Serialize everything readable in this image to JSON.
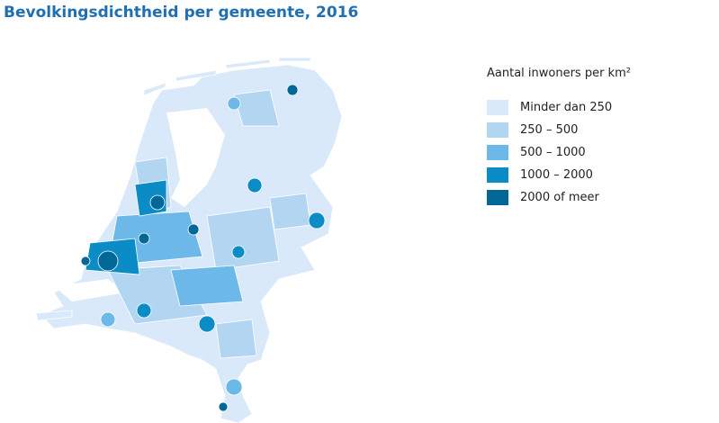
{
  "title": "Bevolkingsdichtheid per gemeente, 2016",
  "legend": {
    "title": "Aantal inwoners per km²",
    "items": [
      {
        "label": "Minder dan 250",
        "color": "#d9e9f9"
      },
      {
        "label": "250 – 500",
        "color": "#b2d6f2"
      },
      {
        "label": "500 – 1000",
        "color": "#6cb8e9"
      },
      {
        "label": "1000 – 2000",
        "color": "#0b8cc6"
      },
      {
        "label": "2000 of meer",
        "color": "#006796"
      }
    ]
  }
}
